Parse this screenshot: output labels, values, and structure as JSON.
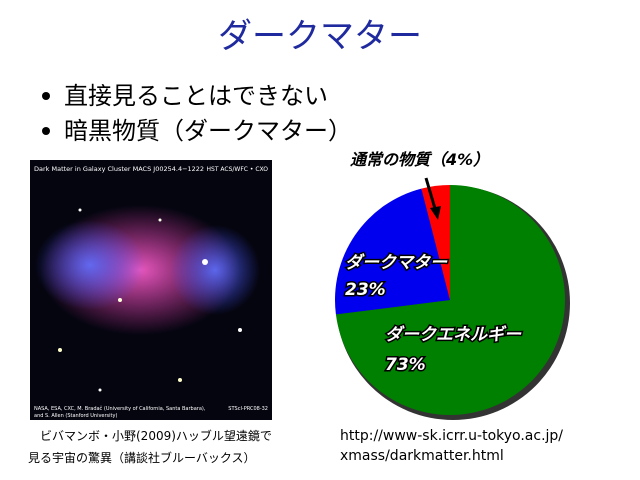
{
  "title": "ダークマター",
  "bullets": [
    "直接見ることはできない",
    "暗黒物質（ダークマター）"
  ],
  "image": {
    "header": "Dark Matter in Galaxy Cluster MACS J00254.4−1222",
    "instrument": "HST ACS/WFC • CXO",
    "credit": [
      "NASA, ESA, CXC, M. Bradač (University of California, Santa Barbara),",
      "and S. Allen (Stanford University)"
    ],
    "id": "STScI-PRC08-32"
  },
  "caption": [
    "ビバマンボ・小野(2009)ハッブル望遠鏡で",
    "見る宇宙の驚異（講談社ブルーバックス）"
  ],
  "link": [
    "http://www-sk.icrr.u-tokyo.ac.jp/",
    "xmass/darkmatter.html"
  ],
  "chart_data": {
    "type": "pie",
    "series": [
      {
        "name": "ダークエネルギー",
        "color": "#008000",
        "values": 73,
        "value_labels": "73%"
      },
      {
        "name": "ダークマター",
        "color": "#0000ee",
        "values": 23,
        "value_labels": "23%"
      },
      {
        "name": "通常の物質",
        "color": "#ff0000",
        "values": 4,
        "value_labels": "（4%）"
      }
    ]
  }
}
